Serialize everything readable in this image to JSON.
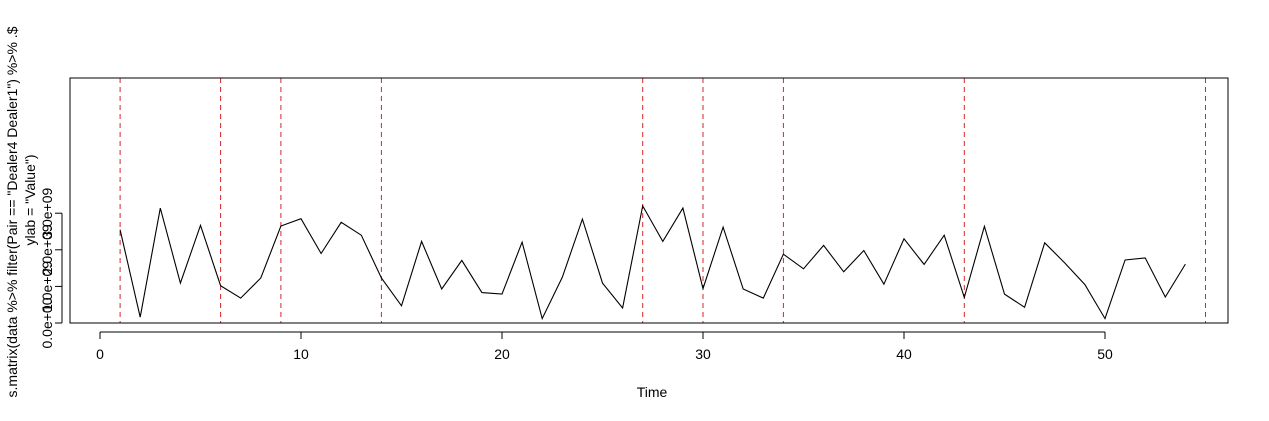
{
  "chart_data": {
    "type": "line",
    "xlabel": "Time",
    "ylabel_line1": "s.matrix(data %>% filter(Pair == \"Dealer4 Dealer1\") %>% .$",
    "ylabel_line2": "ylab = \"Value\")",
    "xlim": [
      0,
      55
    ],
    "ylim": [
      0,
      3300000000
    ],
    "x_ticks": [
      0,
      10,
      20,
      30,
      40,
      50
    ],
    "x_tick_labels": [
      "0",
      "10",
      "20",
      "30",
      "40",
      "50"
    ],
    "y_ticks": [
      0,
      1000000000,
      2000000000,
      3000000000
    ],
    "y_tick_labels": [
      "0.0e+00",
      "1.0e+09",
      "2.0e+09",
      "3.0e+09"
    ],
    "series": [
      {
        "color": "#000000",
        "x": [
          1,
          2,
          3,
          4,
          5,
          6,
          7,
          8,
          9,
          10,
          11,
          12,
          13,
          14,
          15,
          16,
          17,
          18,
          19,
          20,
          21,
          22,
          23,
          24,
          25,
          26,
          27,
          28,
          29,
          30,
          31,
          32,
          33,
          34,
          35,
          36,
          37,
          38,
          39,
          40,
          41,
          42,
          43,
          44,
          45,
          46,
          47,
          48,
          49,
          50,
          51,
          52,
          53,
          54
        ],
        "y": [
          2550000000,
          160000000,
          3140000000,
          1090000000,
          2670000000,
          1020000000,
          680000000,
          1230000000,
          2650000000,
          2850000000,
          1900000000,
          2750000000,
          2400000000,
          1230000000,
          470000000,
          2230000000,
          930000000,
          1710000000,
          830000000,
          790000000,
          2210000000,
          120000000,
          1250000000,
          2840000000,
          1090000000,
          410000000,
          3200000000,
          2230000000,
          3140000000,
          940000000,
          2620000000,
          930000000,
          680000000,
          1880000000,
          1480000000,
          2120000000,
          1400000000,
          1980000000,
          1060000000,
          2300000000,
          1600000000,
          2400000000,
          700000000,
          2640000000,
          790000000,
          430000000,
          2190000000,
          1640000000,
          1050000000,
          120000000,
          1720000000,
          1780000000,
          710000000,
          1610000000
        ]
      }
    ],
    "vlines": {
      "color": "#d62728",
      "style": "dashed",
      "x": [
        1,
        6,
        9,
        14,
        27,
        30,
        34,
        43,
        55
      ]
    }
  }
}
